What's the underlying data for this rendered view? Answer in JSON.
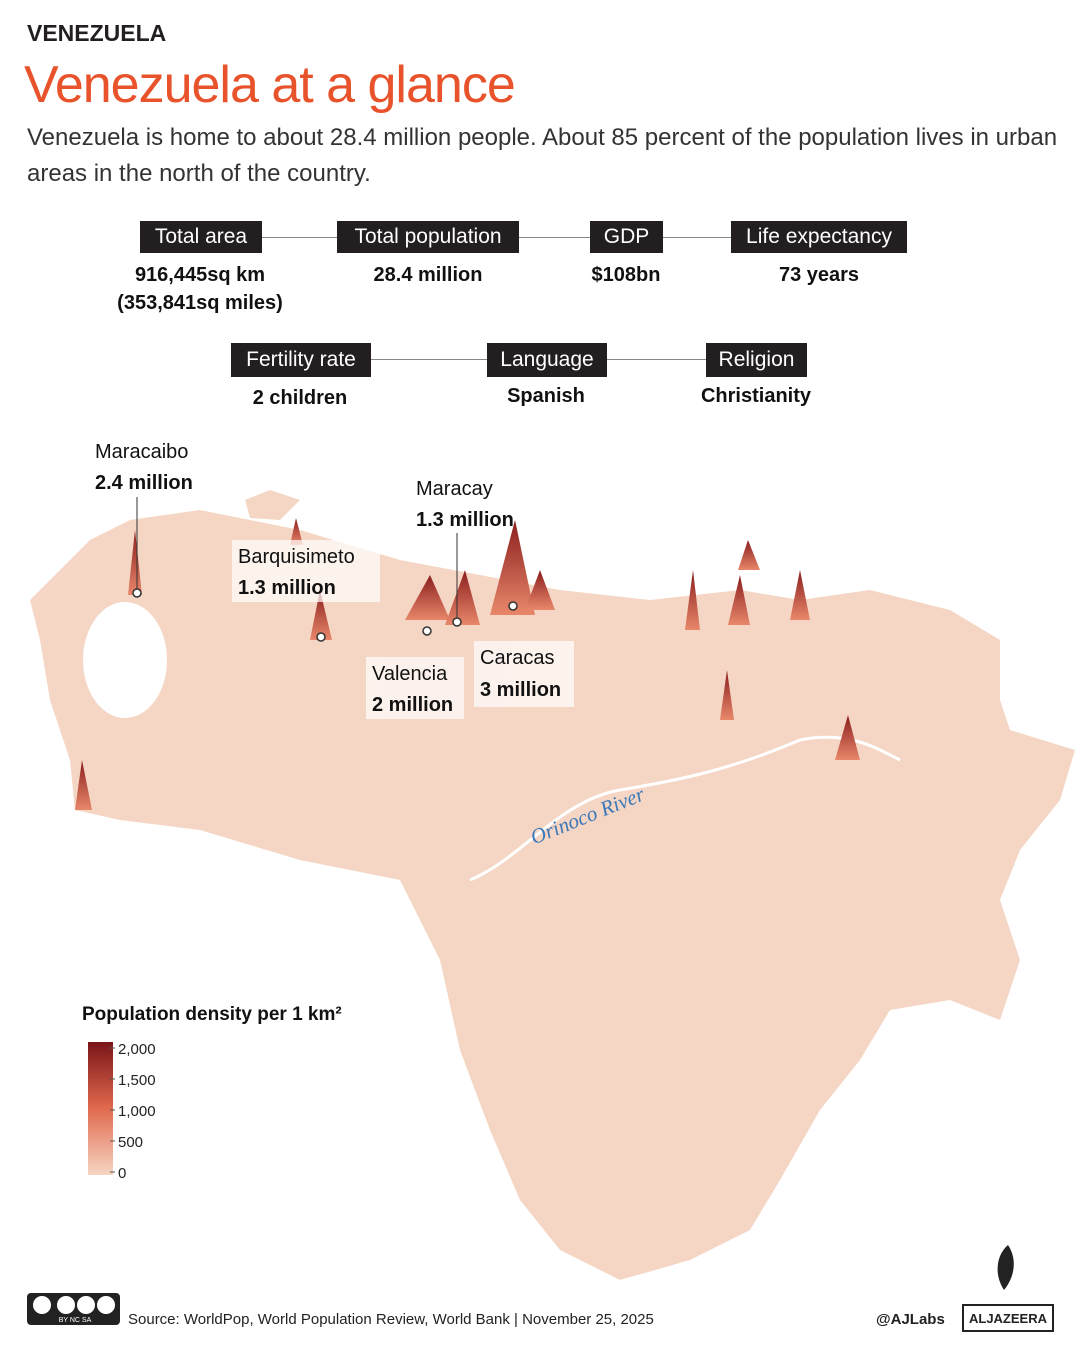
{
  "header": {
    "kicker": "VENEZUELA",
    "title": "Venezuela at a glance",
    "subtitle": "Venezuela is home to about 28.4 million people. About 85 percent of the population lives in urban areas in the north of the country."
  },
  "stats": [
    {
      "label": "Total area",
      "value": "916,445sq km",
      "value2": "(353,841sq miles)"
    },
    {
      "label": "Total population",
      "value": "28.4 million"
    },
    {
      "label": "GDP",
      "value": "$108bn"
    },
    {
      "label": "Life expectancy",
      "value": "73 years"
    },
    {
      "label": "Fertility rate",
      "value": "2 children"
    },
    {
      "label": "Language",
      "value": "Spanish"
    },
    {
      "label": "Religion",
      "value": "Christianity"
    }
  ],
  "cities": [
    {
      "name": "Maracaibo",
      "population": "2.4 million"
    },
    {
      "name": "Maracay",
      "population": "1.3 million"
    },
    {
      "name": "Barquisimeto",
      "population": "1.3 million"
    },
    {
      "name": "Valencia",
      "population": "2 million"
    },
    {
      "name": "Caracas",
      "population": "3 million"
    }
  ],
  "river": "Orinoco River",
  "legend": {
    "title": "Population density per 1 km²",
    "ticks": [
      {
        "value": 2000,
        "label": "2,000"
      },
      {
        "value": 1500,
        "label": "1,500"
      },
      {
        "value": 1000,
        "label": "1,000"
      },
      500,
      0
    ]
  },
  "footer": {
    "license": "BY NC SA",
    "source": "Source:  WorldPop, World Population Review, World Bank | November 25, 2025",
    "handle": "@AJLabs",
    "logo": "ALJAZEERA"
  }
}
